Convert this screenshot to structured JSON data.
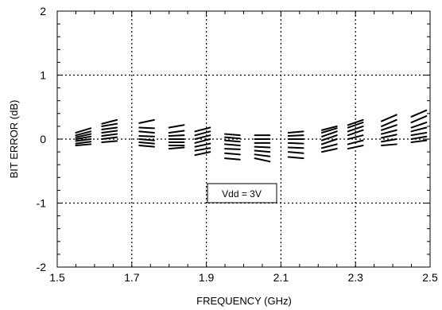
{
  "chart_data": {
    "type": "line",
    "title": "",
    "xlabel": "FREQUENCY (GHz)",
    "ylabel": "BIT ERROR (dB)",
    "xlim": [
      1.5,
      2.5
    ],
    "ylim": [
      -2,
      2
    ],
    "x_ticks": [
      "1.5",
      "1.7",
      "1.9",
      "2.1",
      "2.3",
      "2.5"
    ],
    "x_tick_values": [
      1.5,
      1.7,
      1.9,
      2.1,
      2.3,
      2.5
    ],
    "y_ticks": [
      "2",
      "1",
      "0",
      "-1",
      "-2"
    ],
    "y_tick_values": [
      2,
      1,
      0,
      -1,
      -2
    ],
    "grid": true,
    "grid_style": "dotted",
    "annotation": "Vdd = 3V",
    "line_color": "#000000",
    "series_description_groups": [
      {
        "f0": 1.55,
        "f1": 1.59,
        "values_start": [
          -0.1,
          -0.07,
          -0.03,
          0.0,
          0.03,
          0.06,
          0.1
        ],
        "values_end": [
          -0.08,
          -0.04,
          0.0,
          0.04,
          0.08,
          0.12,
          0.17
        ]
      },
      {
        "f0": 1.62,
        "f1": 1.66,
        "values_start": [
          -0.05,
          0.0,
          0.05,
          0.1,
          0.15,
          0.2,
          0.24
        ],
        "values_end": [
          -0.03,
          0.03,
          0.08,
          0.13,
          0.18,
          0.24,
          0.3
        ]
      },
      {
        "f0": 1.72,
        "f1": 1.76,
        "values_start": [
          -0.1,
          -0.05,
          0.0,
          0.05,
          0.12,
          0.18,
          0.25
        ],
        "values_end": [
          -0.12,
          -0.07,
          -0.02,
          0.04,
          0.1,
          0.17,
          0.3
        ]
      },
      {
        "f0": 1.8,
        "f1": 1.84,
        "values_start": [
          -0.15,
          -0.1,
          -0.05,
          0.0,
          0.05,
          0.1,
          0.18
        ],
        "values_end": [
          -0.13,
          -0.1,
          -0.05,
          0.0,
          0.06,
          0.13,
          0.22
        ]
      },
      {
        "f0": 1.87,
        "f1": 1.91,
        "values_start": [
          -0.25,
          -0.18,
          -0.12,
          -0.06,
          0.0,
          0.06,
          0.12
        ],
        "values_end": [
          -0.2,
          -0.14,
          -0.07,
          0.0,
          0.06,
          0.12,
          0.18
        ]
      },
      {
        "f0": 1.95,
        "f1": 1.99,
        "values_start": [
          -0.3,
          -0.22,
          -0.15,
          -0.08,
          -0.02,
          0.03,
          0.08
        ],
        "values_end": [
          -0.32,
          -0.24,
          -0.16,
          -0.1,
          -0.04,
          0.01,
          0.06
        ]
      },
      {
        "f0": 2.03,
        "f1": 2.07,
        "values_start": [
          -0.3,
          -0.24,
          -0.18,
          -0.12,
          -0.06,
          0.0,
          0.06
        ],
        "values_end": [
          -0.35,
          -0.27,
          -0.2,
          -0.13,
          -0.06,
          0.0,
          0.06
        ]
      },
      {
        "f0": 2.12,
        "f1": 2.16,
        "values_start": [
          -0.28,
          -0.2,
          -0.13,
          -0.06,
          0.0,
          0.05,
          0.1
        ],
        "values_end": [
          -0.3,
          -0.22,
          -0.14,
          -0.07,
          0.0,
          0.06,
          0.12
        ]
      },
      {
        "f0": 2.21,
        "f1": 2.25,
        "values_start": [
          -0.2,
          -0.14,
          -0.08,
          -0.02,
          0.04,
          0.1,
          0.14
        ],
        "values_end": [
          -0.15,
          -0.08,
          0.0,
          0.06,
          0.12,
          0.17,
          0.2
        ]
      },
      {
        "f0": 2.28,
        "f1": 2.32,
        "values_start": [
          -0.15,
          -0.08,
          0.0,
          0.06,
          0.12,
          0.18,
          0.22
        ],
        "values_end": [
          -0.1,
          -0.02,
          0.06,
          0.14,
          0.2,
          0.26,
          0.3
        ]
      },
      {
        "f0": 2.37,
        "f1": 2.41,
        "values_start": [
          -0.1,
          -0.04,
          0.02,
          0.08,
          0.14,
          0.2,
          0.28
        ],
        "values_end": [
          -0.08,
          0.0,
          0.07,
          0.14,
          0.22,
          0.3,
          0.38
        ]
      },
      {
        "f0": 2.45,
        "f1": 2.49,
        "values_start": [
          -0.05,
          0.0,
          0.06,
          0.12,
          0.18,
          0.26,
          0.35
        ],
        "values_end": [
          -0.02,
          0.04,
          0.1,
          0.18,
          0.26,
          0.36,
          0.45
        ]
      }
    ]
  }
}
